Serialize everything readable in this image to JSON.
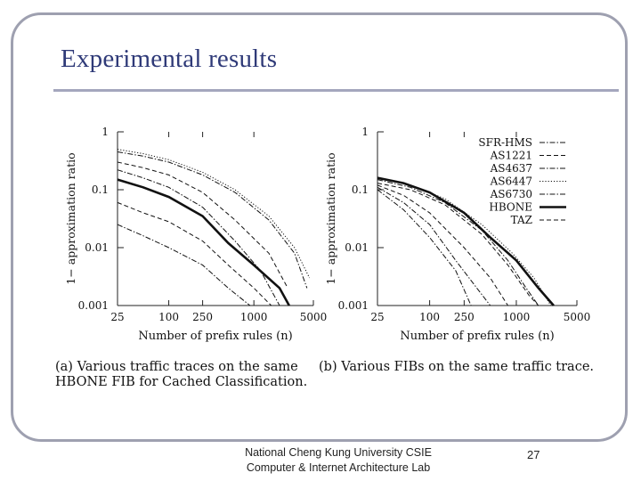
{
  "slide": {
    "title": "Experimental results",
    "footer_line1": "National Cheng Kung University CSIE",
    "footer_line2": "Computer & Internet Architecture Lab",
    "page_number": "27"
  },
  "chart_data": [
    {
      "type": "line",
      "caption_line1": "(a) Various traffic traces on the same",
      "caption_line2": "HBONE FIB for Cached Classification.",
      "xlabel": "Number of prefix rules (n)",
      "ylabel": "1− approximation ratio",
      "x_scale": "log",
      "y_scale": "log",
      "xlim": [
        25,
        5000
      ],
      "ylim": [
        0.001,
        1
      ],
      "x_ticks": [
        25,
        100,
        250,
        1000,
        5000
      ],
      "y_ticks": [
        1,
        0.1,
        0.01,
        0.001
      ],
      "y_tick_labels": [
        "1",
        "0.1",
        "0.01",
        "0.001"
      ],
      "series": [
        {
          "style": "dotted",
          "bold": false,
          "points": [
            [
              25,
              0.5
            ],
            [
              50,
              0.42
            ],
            [
              100,
              0.33
            ],
            [
              250,
              0.2
            ],
            [
              600,
              0.1
            ],
            [
              1500,
              0.035
            ],
            [
              3000,
              0.01
            ],
            [
              4500,
              0.003
            ]
          ]
        },
        {
          "style": "dash-dot",
          "bold": false,
          "points": [
            [
              25,
              0.45
            ],
            [
              50,
              0.38
            ],
            [
              100,
              0.3
            ],
            [
              250,
              0.18
            ],
            [
              600,
              0.09
            ],
            [
              1500,
              0.03
            ],
            [
              3000,
              0.008
            ],
            [
              4200,
              0.002
            ]
          ]
        },
        {
          "style": "dashed",
          "bold": false,
          "points": [
            [
              25,
              0.3
            ],
            [
              50,
              0.24
            ],
            [
              100,
              0.18
            ],
            [
              250,
              0.09
            ],
            [
              600,
              0.03
            ],
            [
              1500,
              0.008
            ],
            [
              2500,
              0.002
            ]
          ]
        },
        {
          "style": "dash-dot",
          "bold": false,
          "points": [
            [
              25,
              0.22
            ],
            [
              50,
              0.16
            ],
            [
              100,
              0.11
            ],
            [
              250,
              0.05
            ],
            [
              600,
              0.013
            ],
            [
              1200,
              0.004
            ],
            [
              2000,
              0.001
            ]
          ]
        },
        {
          "style": "solid",
          "bold": true,
          "points": [
            [
              25,
              0.15
            ],
            [
              50,
              0.11
            ],
            [
              100,
              0.075
            ],
            [
              250,
              0.035
            ],
            [
              500,
              0.012
            ],
            [
              1000,
              0.005
            ],
            [
              2000,
              0.002
            ],
            [
              2600,
              0.001
            ]
          ]
        },
        {
          "style": "dashed",
          "bold": false,
          "points": [
            [
              25,
              0.06
            ],
            [
              50,
              0.04
            ],
            [
              100,
              0.028
            ],
            [
              250,
              0.013
            ],
            [
              500,
              0.005
            ],
            [
              1000,
              0.002
            ],
            [
              1600,
              0.001
            ]
          ]
        },
        {
          "style": "dash-dot",
          "bold": false,
          "points": [
            [
              25,
              0.025
            ],
            [
              50,
              0.016
            ],
            [
              100,
              0.01
            ],
            [
              250,
              0.005
            ],
            [
              500,
              0.002
            ],
            [
              900,
              0.001
            ]
          ]
        }
      ]
    },
    {
      "type": "line",
      "caption_line1": "(b) Various FIBs on the same traffic trace.",
      "xlabel": "Number of prefix rules (n)",
      "ylabel": "1− approximation ratio",
      "x_scale": "log",
      "y_scale": "log",
      "xlim": [
        25,
        5000
      ],
      "ylim": [
        0.001,
        1
      ],
      "x_ticks": [
        25,
        100,
        250,
        1000,
        5000
      ],
      "y_ticks": [
        1,
        0.1,
        0.01,
        0.001
      ],
      "y_tick_labels": [
        "1",
        "0.1",
        "0.01",
        "0.001"
      ],
      "legend_position": "top-right",
      "series": [
        {
          "name": "SFR-HMS",
          "style": "dash-dot",
          "bold": false,
          "points": [
            [
              25,
              0.15
            ],
            [
              60,
              0.11
            ],
            [
              150,
              0.06
            ],
            [
              400,
              0.02
            ],
            [
              800,
              0.006
            ],
            [
              1300,
              0.002
            ],
            [
              1800,
              0.001
            ]
          ]
        },
        {
          "name": "AS1221",
          "style": "dashed",
          "bold": false,
          "points": [
            [
              25,
              0.12
            ],
            [
              50,
              0.08
            ],
            [
              100,
              0.04
            ],
            [
              250,
              0.01
            ],
            [
              500,
              0.003
            ],
            [
              800,
              0.001
            ]
          ]
        },
        {
          "name": "AS4637",
          "style": "dash-dot",
          "bold": false,
          "points": [
            [
              25,
              0.11
            ],
            [
              50,
              0.06
            ],
            [
              100,
              0.025
            ],
            [
              200,
              0.006
            ],
            [
              350,
              0.002
            ],
            [
              500,
              0.001
            ]
          ]
        },
        {
          "name": "AS6447",
          "style": "dotted",
          "bold": false,
          "points": [
            [
              25,
              0.16
            ],
            [
              60,
              0.12
            ],
            [
              150,
              0.07
            ],
            [
              400,
              0.025
            ],
            [
              900,
              0.008
            ],
            [
              1600,
              0.003
            ],
            [
              2500,
              0.001
            ]
          ]
        },
        {
          "name": "AS6730",
          "style": "dash-dot",
          "bold": false,
          "points": [
            [
              25,
              0.1
            ],
            [
              50,
              0.045
            ],
            [
              100,
              0.015
            ],
            [
              200,
              0.004
            ],
            [
              300,
              0.001
            ]
          ]
        },
        {
          "name": "HBONE",
          "style": "solid",
          "bold": true,
          "points": [
            [
              25,
              0.16
            ],
            [
              50,
              0.13
            ],
            [
              100,
              0.09
            ],
            [
              250,
              0.04
            ],
            [
              500,
              0.015
            ],
            [
              1000,
              0.006
            ],
            [
              1800,
              0.002
            ],
            [
              2700,
              0.001
            ]
          ]
        },
        {
          "name": "TAZ",
          "style": "dashed",
          "bold": false,
          "points": [
            [
              25,
              0.13
            ],
            [
              60,
              0.1
            ],
            [
              150,
              0.055
            ],
            [
              400,
              0.017
            ],
            [
              800,
              0.005
            ],
            [
              1400,
              0.0015
            ],
            [
              1800,
              0.001
            ]
          ]
        }
      ]
    }
  ]
}
